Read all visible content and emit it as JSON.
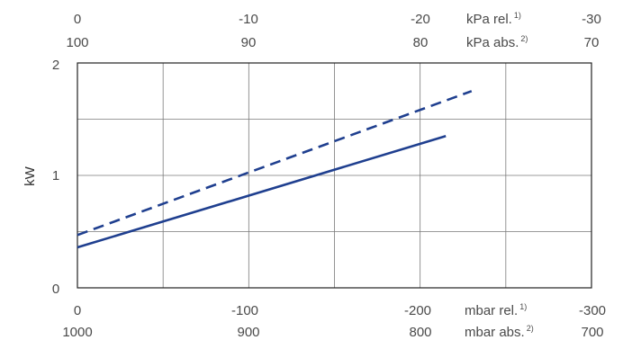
{
  "chart_data": {
    "type": "line",
    "ylabel": "kW",
    "ylim": [
      0,
      2
    ],
    "y_ticks": [
      "0",
      "1",
      "2"
    ],
    "xlim": [
      0,
      -300
    ],
    "grid": true,
    "axes": {
      "top_row1": {
        "ticks": [
          "0",
          "-10",
          "-20",
          "-30"
        ],
        "unit": "kPa rel.",
        "unit_sup": "1)"
      },
      "top_row2": {
        "ticks": [
          "100",
          "90",
          "80",
          "70"
        ],
        "unit": "kPa abs.",
        "unit_sup": "2)"
      },
      "bottom_row1": {
        "ticks": [
          "0",
          "-100",
          "-200",
          "-300"
        ],
        "unit": "mbar rel.",
        "unit_sup": "1)"
      },
      "bottom_row2": {
        "ticks": [
          "1000",
          "900",
          "800",
          "700"
        ],
        "unit": "mbar abs.",
        "unit_sup": "2)"
      }
    },
    "series": [
      {
        "style": "solid",
        "color": "#1f3f8f",
        "x": [
          0,
          -215
        ],
        "y": [
          0.36,
          1.35
        ]
      },
      {
        "style": "dashed",
        "color": "#1f3f8f",
        "x": [
          0,
          -230
        ],
        "y": [
          0.47,
          1.75
        ]
      }
    ]
  }
}
